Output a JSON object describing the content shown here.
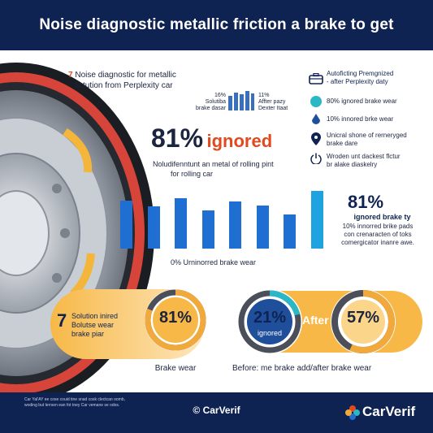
{
  "header": {
    "title": "Noise diagnostic metallic friction a brake to get"
  },
  "intro": {
    "number": "7",
    "line1": "Noise diagnostic for metallic",
    "line2": "fictution from Perplexity car"
  },
  "mini_stats": [
    {
      "value": "16%",
      "label1": "Solutiba",
      "label2": "brake dasar"
    },
    {
      "value": "11%",
      "label1": "Affter pazy",
      "label2": "Dexter Itaat"
    }
  ],
  "right_panel": {
    "title1": "Autoficting Premgnized",
    "title2": "- after Perplexity daty",
    "items": [
      {
        "icon": "teal-dot-icon",
        "text": "80% ignored brake wear"
      },
      {
        "icon": "droplet-icon",
        "text": "10% innored brke wear"
      },
      {
        "icon": "map-pin-icon",
        "text1": "Unicral shone of rerneryged",
        "text2": "brake dare"
      },
      {
        "icon": "power-icon",
        "text1": "Wroden unt dackest flctur",
        "text2": "br alake diaskelry"
      }
    ]
  },
  "headline": {
    "percent": "81%",
    "word": "ignored",
    "sub1": "Noludifenntunt an metal of rolling pint",
    "sub2": "for rolling car"
  },
  "chart_data": {
    "type": "bar",
    "values": [
      0.78,
      0.68,
      0.82,
      0.62,
      0.76,
      0.7,
      0.55,
      0.93
    ],
    "caption": "0% Urninorred brake wear"
  },
  "right_stat": {
    "value": "81%",
    "line1": "ignored brake ty",
    "line2": "10% innorred brike pads",
    "line3": "con crenaracten of toks",
    "line4": "comergicator inanre awe."
  },
  "bottom_left": {
    "number": "7",
    "line1": "Solution inired",
    "line2": "Bolutse wear",
    "line3": "brake piar",
    "gauge_value": "81%",
    "gauge_fraction": 0.81,
    "caption": "Brake wear"
  },
  "bottom_right": {
    "before_value": "21%",
    "before_label": "ignored",
    "before_fraction": 0.21,
    "after_label": "After",
    "after_value": "57%",
    "after_fraction": 0.57,
    "caption": "Before: me brake add/after brake wear"
  },
  "footer": {
    "small1": "Car Yal'AY ee cose couid tine snad cosk clectcan oomb,",
    "small2": "woding but lerrsen ean fot tney Car vemane se odos.",
    "center": "© CarVerif",
    "logo": "CarVerif"
  },
  "colors": {
    "navy": "#0f2352",
    "blue": "#1f6fd3",
    "orange": "#f2a93b",
    "red": "#e04a1e",
    "teal": "#2bb7c4"
  }
}
